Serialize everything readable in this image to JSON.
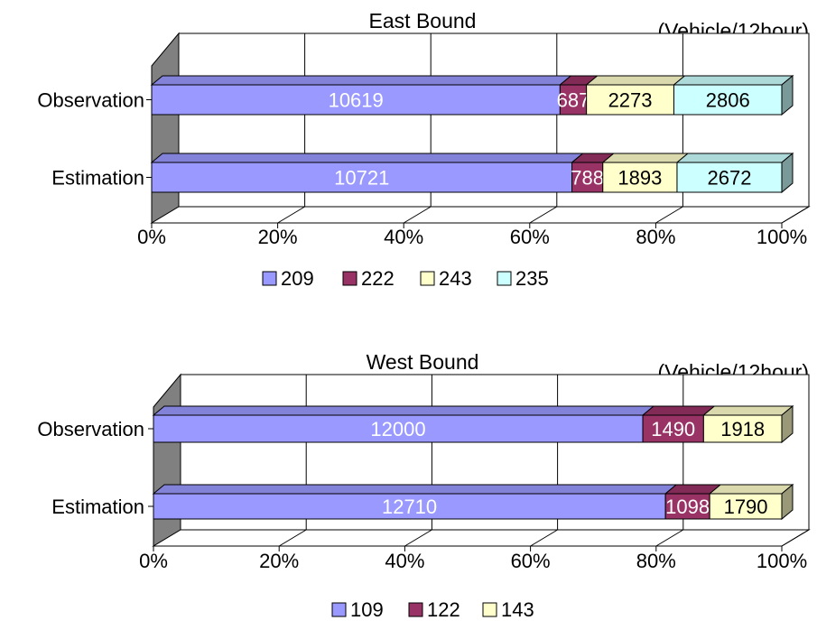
{
  "chart_data": [
    {
      "type": "bar",
      "stacked": "percent",
      "orientation": "horizontal",
      "title": "East Bound",
      "unit_note": "(Vehicle/12hour)",
      "categories": [
        "Observation",
        "Estimation"
      ],
      "series": [
        {
          "name": "209",
          "color": "#9999FF",
          "values": [
            10619,
            10721
          ]
        },
        {
          "name": "222",
          "color": "#993366",
          "values": [
            687,
            788
          ]
        },
        {
          "name": "243",
          "color": "#FFFFCC",
          "values": [
            2273,
            1893
          ]
        },
        {
          "name": "235",
          "color": "#CCFFFF",
          "values": [
            2806,
            2672
          ]
        }
      ],
      "x_ticks": [
        "0%",
        "20%",
        "40%",
        "60%",
        "80%",
        "100%"
      ],
      "xlim": [
        0,
        100
      ],
      "grid": true,
      "legend_position": "bottom"
    },
    {
      "type": "bar",
      "stacked": "percent",
      "orientation": "horizontal",
      "title": "West Bound",
      "unit_note": "(Vehicle/12hour)",
      "categories": [
        "Observation",
        "Estimation"
      ],
      "series": [
        {
          "name": "109",
          "color": "#9999FF",
          "values": [
            12000,
            12710
          ]
        },
        {
          "name": "122",
          "color": "#993366",
          "values": [
            1490,
            1098
          ]
        },
        {
          "name": "143",
          "color": "#FFFFCC",
          "values": [
            1918,
            1790
          ]
        }
      ],
      "x_ticks": [
        "0%",
        "20%",
        "40%",
        "60%",
        "80%",
        "100%"
      ],
      "xlim": [
        0,
        100
      ],
      "grid": true,
      "legend_position": "bottom"
    }
  ]
}
